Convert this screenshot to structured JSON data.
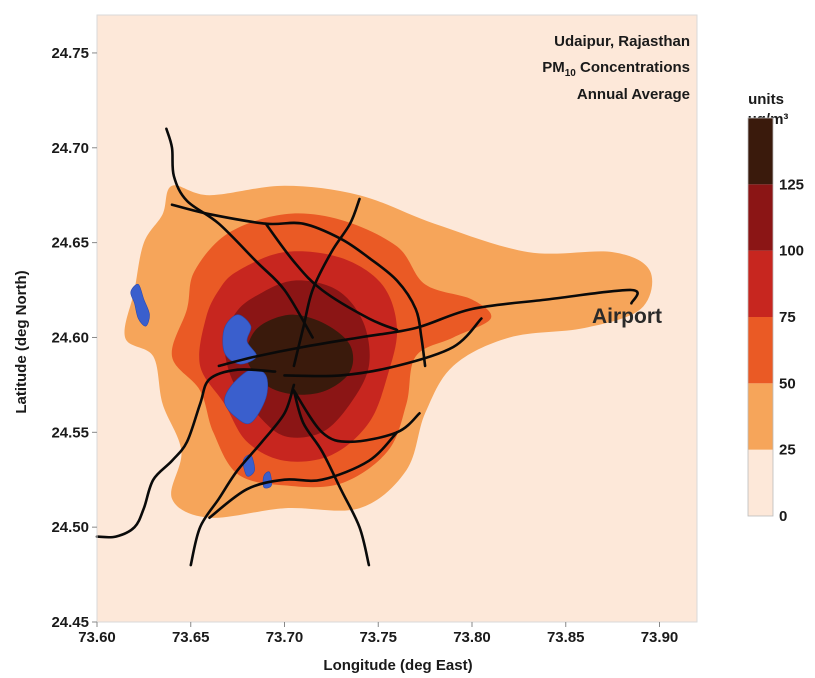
{
  "chart_data": {
    "type": "heatmap",
    "title_lines": [
      "Udaipur, Rajasthan",
      "PM10 Concentrations",
      "Annual Average"
    ],
    "title_pm_base": "PM",
    "title_pm_sub": "10",
    "title_pm_rest": " Concentrations",
    "xlabel": "Longitude (deg East)",
    "ylabel": "Latitude (deg North)",
    "xlim": [
      73.6,
      73.92
    ],
    "ylim": [
      24.45,
      24.77
    ],
    "x_ticks": [
      "73.60",
      "73.65",
      "73.70",
      "73.75",
      "73.80",
      "73.85",
      "73.90"
    ],
    "x_tick_values": [
      73.6,
      73.65,
      73.7,
      73.75,
      73.8,
      73.85,
      73.9
    ],
    "y_ticks": [
      "24.45",
      "24.50",
      "24.55",
      "24.60",
      "24.65",
      "24.70",
      "24.75"
    ],
    "y_tick_values": [
      24.45,
      24.5,
      24.55,
      24.6,
      24.65,
      24.7,
      24.75
    ],
    "annotation": "Airport",
    "colorbar": {
      "units_label": "units",
      "units_value": "μg/m³",
      "levels": [
        0,
        25,
        50,
        75,
        100,
        125
      ],
      "level_labels": [
        "0",
        "25",
        "50",
        "75",
        "100",
        "125"
      ],
      "colors": [
        "#fde8d9",
        "#f6a55a",
        "#ea5a25",
        "#c7261f",
        "#8b1515",
        "#3a1a0c"
      ]
    },
    "contours": [
      {
        "level": 25,
        "color": "#f6a55a",
        "points": [
          [
            73.64,
            24.68
          ],
          [
            73.66,
            24.675
          ],
          [
            73.7,
            24.68
          ],
          [
            73.74,
            24.675
          ],
          [
            73.78,
            24.66
          ],
          [
            73.83,
            24.645
          ],
          [
            73.875,
            24.645
          ],
          [
            73.895,
            24.635
          ],
          [
            73.89,
            24.615
          ],
          [
            73.86,
            24.605
          ],
          [
            73.82,
            24.6
          ],
          [
            73.79,
            24.585
          ],
          [
            73.775,
            24.56
          ],
          [
            73.765,
            24.53
          ],
          [
            73.74,
            24.51
          ],
          [
            73.7,
            24.51
          ],
          [
            73.66,
            24.505
          ],
          [
            73.64,
            24.515
          ],
          [
            73.645,
            24.54
          ],
          [
            73.635,
            24.565
          ],
          [
            73.63,
            24.59
          ],
          [
            73.615,
            24.6
          ],
          [
            73.62,
            24.625
          ],
          [
            73.625,
            24.65
          ],
          [
            73.635,
            24.665
          ]
        ]
      },
      {
        "level": 50,
        "color": "#ea5a25",
        "points": [
          [
            73.67,
            24.655
          ],
          [
            73.7,
            24.665
          ],
          [
            73.73,
            24.662
          ],
          [
            73.76,
            24.648
          ],
          [
            73.775,
            24.628
          ],
          [
            73.8,
            24.62
          ],
          [
            73.81,
            24.61
          ],
          [
            73.79,
            24.6
          ],
          [
            73.77,
            24.59
          ],
          [
            73.765,
            24.565
          ],
          [
            73.755,
            24.54
          ],
          [
            73.73,
            24.523
          ],
          [
            73.7,
            24.522
          ],
          [
            73.675,
            24.528
          ],
          [
            73.662,
            24.55
          ],
          [
            73.655,
            24.572
          ],
          [
            73.64,
            24.59
          ],
          [
            73.648,
            24.615
          ],
          [
            73.652,
            24.635
          ]
        ]
      },
      {
        "level": 75,
        "color": "#c7261f",
        "points": [
          [
            73.675,
            24.635
          ],
          [
            73.7,
            24.645
          ],
          [
            73.73,
            24.642
          ],
          [
            73.752,
            24.628
          ],
          [
            73.76,
            24.605
          ],
          [
            73.755,
            24.58
          ],
          [
            73.745,
            24.555
          ],
          [
            73.725,
            24.538
          ],
          [
            73.7,
            24.535
          ],
          [
            73.68,
            24.545
          ],
          [
            73.668,
            24.565
          ],
          [
            73.655,
            24.585
          ],
          [
            73.658,
            24.61
          ],
          [
            73.665,
            24.625
          ]
        ]
      },
      {
        "level": 100,
        "color": "#8b1515",
        "points": [
          [
            73.685,
            24.622
          ],
          [
            73.705,
            24.63
          ],
          [
            73.728,
            24.625
          ],
          [
            73.742,
            24.608
          ],
          [
            73.745,
            24.585
          ],
          [
            73.735,
            24.565
          ],
          [
            73.72,
            24.55
          ],
          [
            73.7,
            24.548
          ],
          [
            73.685,
            24.56
          ],
          [
            73.672,
            24.578
          ],
          [
            73.668,
            24.598
          ],
          [
            73.674,
            24.613
          ]
        ]
      },
      {
        "level": 125,
        "color": "#3a1a0c",
        "points": [
          [
            73.69,
            24.608
          ],
          [
            73.705,
            24.612
          ],
          [
            73.722,
            24.607
          ],
          [
            73.735,
            24.596
          ],
          [
            73.735,
            24.582
          ],
          [
            73.722,
            24.572
          ],
          [
            73.705,
            24.57
          ],
          [
            73.69,
            24.575
          ],
          [
            73.68,
            24.588
          ],
          [
            73.682,
            24.6
          ]
        ]
      }
    ],
    "water": [
      {
        "points": [
          [
            73.618,
            24.624
          ],
          [
            73.622,
            24.628
          ],
          [
            73.625,
            24.62
          ],
          [
            73.628,
            24.612
          ],
          [
            73.626,
            24.606
          ],
          [
            73.622,
            24.61
          ],
          [
            73.62,
            24.618
          ]
        ]
      },
      {
        "points": [
          [
            73.668,
            24.605
          ],
          [
            73.675,
            24.612
          ],
          [
            73.682,
            24.606
          ],
          [
            73.68,
            24.598
          ],
          [
            73.685,
            24.59
          ],
          [
            73.676,
            24.586
          ],
          [
            73.668,
            24.592
          ]
        ]
      },
      {
        "points": [
          [
            73.672,
            24.575
          ],
          [
            73.682,
            24.583
          ],
          [
            73.69,
            24.58
          ],
          [
            73.69,
            24.568
          ],
          [
            73.682,
            24.555
          ],
          [
            73.674,
            24.558
          ],
          [
            73.668,
            24.566
          ]
        ]
      },
      {
        "points": [
          [
            73.678,
            24.535
          ],
          [
            73.682,
            24.538
          ],
          [
            73.684,
            24.53
          ],
          [
            73.68,
            24.527
          ]
        ]
      },
      {
        "points": [
          [
            73.689,
            24.527
          ],
          [
            73.692,
            24.529
          ],
          [
            73.693,
            24.522
          ],
          [
            73.689,
            24.521
          ]
        ]
      }
    ],
    "roads": [
      [
        [
          73.637,
          24.71
        ],
        [
          73.64,
          24.7
        ],
        [
          73.641,
          24.685
        ],
        [
          73.648,
          24.672
        ],
        [
          73.665,
          24.66
        ],
        [
          73.685,
          24.64
        ],
        [
          73.7,
          24.625
        ],
        [
          73.715,
          24.6
        ]
      ],
      [
        [
          73.64,
          24.67
        ],
        [
          73.66,
          24.665
        ],
        [
          73.69,
          24.66
        ],
        [
          73.71,
          24.66
        ],
        [
          73.73,
          24.652
        ],
        [
          73.745,
          24.642
        ],
        [
          73.76,
          24.63
        ],
        [
          73.77,
          24.615
        ],
        [
          73.773,
          24.6
        ],
        [
          73.775,
          24.585
        ]
      ],
      [
        [
          73.74,
          24.673
        ],
        [
          73.735,
          24.66
        ],
        [
          73.725,
          24.645
        ],
        [
          73.715,
          24.625
        ],
        [
          73.71,
          24.605
        ],
        [
          73.705,
          24.585
        ]
      ],
      [
        [
          73.69,
          24.66
        ],
        [
          73.705,
          24.64
        ],
        [
          73.72,
          24.625
        ],
        [
          73.745,
          24.61
        ],
        [
          73.76,
          24.604
        ]
      ],
      [
        [
          73.665,
          24.585
        ],
        [
          73.685,
          24.59
        ],
        [
          73.71,
          24.595
        ],
        [
          73.74,
          24.6
        ],
        [
          73.77,
          24.605
        ],
        [
          73.8,
          24.615
        ],
        [
          73.84,
          24.62
        ],
        [
          73.885,
          24.625
        ],
        [
          73.885,
          24.618
        ]
      ],
      [
        [
          73.7,
          24.58
        ],
        [
          73.73,
          24.58
        ],
        [
          73.76,
          24.585
        ],
        [
          73.79,
          24.595
        ],
        [
          73.805,
          24.61
        ]
      ],
      [
        [
          73.6,
          24.495
        ],
        [
          73.61,
          24.495
        ],
        [
          73.62,
          24.5
        ],
        [
          73.625,
          24.51
        ],
        [
          73.63,
          24.525
        ],
        [
          73.64,
          24.535
        ],
        [
          73.648,
          24.545
        ],
        [
          73.655,
          24.565
        ],
        [
          73.66,
          24.578
        ],
        [
          73.675,
          24.583
        ],
        [
          73.695,
          24.582
        ]
      ],
      [
        [
          73.65,
          24.48
        ],
        [
          73.655,
          24.5
        ],
        [
          73.665,
          24.515
        ],
        [
          73.675,
          24.53
        ],
        [
          73.688,
          24.545
        ],
        [
          73.7,
          24.56
        ],
        [
          73.705,
          24.575
        ]
      ],
      [
        [
          73.745,
          24.48
        ],
        [
          73.74,
          24.5
        ],
        [
          73.73,
          24.52
        ],
        [
          73.72,
          24.54
        ],
        [
          73.71,
          24.555
        ],
        [
          73.705,
          24.572
        ]
      ],
      [
        [
          73.66,
          24.505
        ],
        [
          73.68,
          24.52
        ],
        [
          73.7,
          24.525
        ],
        [
          73.72,
          24.525
        ],
        [
          73.745,
          24.535
        ],
        [
          73.76,
          24.55
        ]
      ],
      [
        [
          73.705,
          24.572
        ],
        [
          73.72,
          24.55
        ],
        [
          73.735,
          24.545
        ],
        [
          73.76,
          24.55
        ],
        [
          73.772,
          24.56
        ]
      ]
    ]
  }
}
